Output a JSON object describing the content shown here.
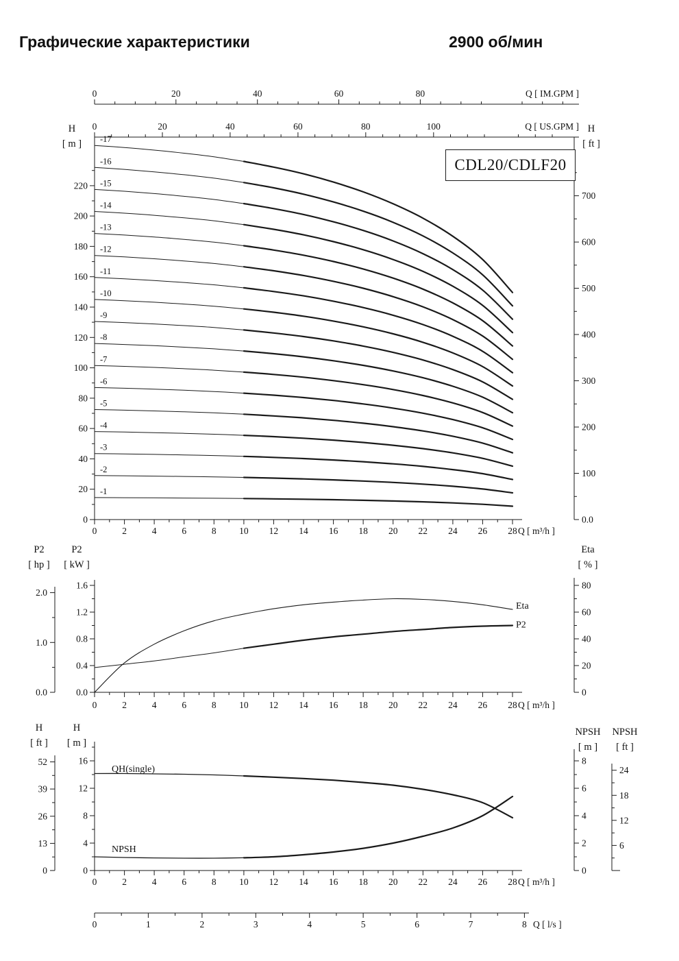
{
  "header": {
    "title": "Графические характеристики",
    "rpm": "2900 об/мин"
  },
  "model": "CDL20/CDLF20",
  "style": {
    "ink": "#1a1a1a"
  },
  "chart_data": [
    {
      "id": "head_curves",
      "type": "line",
      "title": "CDL20/CDLF20",
      "x_label": "Q [ m³/h ]",
      "x_range": [
        0,
        28
      ],
      "x_ticks": [
        0,
        2,
        4,
        6,
        8,
        10,
        12,
        14,
        16,
        18,
        20,
        22,
        24,
        26,
        28
      ],
      "x_top_im": {
        "label": "Q [ IM.GPM ]",
        "ticks": [
          0,
          20,
          40,
          60,
          80
        ],
        "m3h_per_unit": 0.272766
      },
      "x_top_us": {
        "label": "Q [ US.GPM ]",
        "ticks": [
          0,
          20,
          40,
          60,
          80,
          100
        ],
        "m3h_per_unit": 0.227125
      },
      "y_left": {
        "header1": "H",
        "header2": "[ m ]",
        "ticks": [
          0,
          20,
          40,
          60,
          80,
          100,
          120,
          140,
          160,
          180,
          200,
          220
        ],
        "range": [
          0,
          252
        ]
      },
      "y_right": {
        "header1": "H",
        "header2": "[ ft ]",
        "ticks": [
          "0.0",
          "100",
          "200",
          "300",
          "400",
          "500",
          "600",
          "700"
        ],
        "m_per_unit": 0.3048
      },
      "q": [
        0,
        2,
        4,
        6,
        8,
        10,
        12,
        14,
        16,
        18,
        20,
        22,
        24,
        26,
        28
      ],
      "single_stage_head_m": [
        14.5,
        14.42,
        14.32,
        14.2,
        14.06,
        13.88,
        13.66,
        13.4,
        13.08,
        12.7,
        12.24,
        11.68,
        10.98,
        10.08,
        8.8
      ],
      "stages": [
        1,
        2,
        3,
        4,
        5,
        6,
        7,
        8,
        9,
        10,
        11,
        12,
        13,
        14,
        15,
        16,
        17
      ],
      "stage_labels": [
        "-1",
        "-2",
        "-3",
        "-4",
        "-5",
        "-6",
        "-7",
        "-8",
        "-9",
        "-10",
        "-11",
        "-12",
        "-13",
        "-14",
        "-15",
        "-16",
        "-17"
      ],
      "recommended_range_start_m3h": 10
    },
    {
      "id": "power_efficiency",
      "type": "line",
      "x_label": "Q [ m³/h ]",
      "x_range": [
        0,
        28
      ],
      "x_ticks": [
        0,
        2,
        4,
        6,
        8,
        10,
        12,
        14,
        16,
        18,
        20,
        22,
        24,
        26,
        28
      ],
      "q": [
        0,
        2,
        4,
        6,
        8,
        10,
        12,
        14,
        16,
        18,
        20,
        22,
        24,
        26,
        28
      ],
      "series": [
        {
          "name": "P2",
          "unit": "kW",
          "values": [
            0.37,
            0.42,
            0.47,
            0.53,
            0.59,
            0.66,
            0.72,
            0.78,
            0.83,
            0.87,
            0.91,
            0.94,
            0.97,
            0.99,
            1.0
          ]
        },
        {
          "name": "Eta",
          "unit": "%",
          "values": [
            0,
            22,
            36,
            46,
            53.5,
            58.5,
            62.5,
            65.5,
            67.5,
            69,
            70,
            69.5,
            68,
            65.5,
            62
          ]
        }
      ],
      "y_left_hp": {
        "header1": "P2",
        "header2": "[ hp ]",
        "ticks": [
          "0.0",
          "1.0",
          "2.0"
        ],
        "kw_per_hp": 0.7457
      },
      "y_left_kw": {
        "header1": "P2",
        "header2": "[ kW ]",
        "ticks": [
          "0.0",
          "0.4",
          "0.8",
          "1.2",
          "1.6"
        ],
        "range": [
          0,
          2.0
        ]
      },
      "y_right_eta": {
        "header1": "Eta",
        "header2": "[ % ]",
        "ticks": [
          0,
          20,
          40,
          60,
          80
        ],
        "range": [
          0,
          100
        ]
      }
    },
    {
      "id": "single_stage_qh_npsh",
      "type": "line",
      "x_label": "Q [ m³/h ]",
      "x_range": [
        0,
        28
      ],
      "x_ticks": [
        0,
        2,
        4,
        6,
        8,
        10,
        12,
        14,
        16,
        18,
        20,
        22,
        24,
        26,
        28
      ],
      "q": [
        0,
        2,
        4,
        6,
        8,
        10,
        12,
        14,
        16,
        18,
        20,
        22,
        24,
        26,
        28
      ],
      "series": [
        {
          "name": "QH(single)",
          "unit": "m",
          "values": [
            14.15,
            14.15,
            14.1,
            14.05,
            13.95,
            13.8,
            13.62,
            13.42,
            13.18,
            12.85,
            12.45,
            11.85,
            11.05,
            9.9,
            7.7
          ]
        },
        {
          "name": "NPSH",
          "unit": "m",
          "values": [
            1.0,
            0.95,
            0.92,
            0.9,
            0.9,
            0.93,
            1.0,
            1.15,
            1.35,
            1.62,
            2.0,
            2.5,
            3.1,
            4.0,
            5.4
          ]
        }
      ],
      "y_left_ft": {
        "header1": "H",
        "header2": "[ ft ]",
        "ticks": [
          0,
          13,
          26,
          39,
          52
        ],
        "m_per_unit": 0.3048
      },
      "y_left_m": {
        "header1": "H",
        "header2": "[ m ]",
        "ticks": [
          0,
          4,
          8,
          12,
          16
        ],
        "range": [
          0,
          19.5
        ]
      },
      "y_right_npsh_m": {
        "header1": "NPSH",
        "header2": "[ m ]",
        "ticks": [
          0,
          2,
          4,
          6,
          8
        ],
        "range": [
          0,
          9.75
        ]
      },
      "y_right_npsh_ft": {
        "header1": "NPSH",
        "header2": "[ ft ]",
        "ticks": [
          6,
          12,
          18,
          24
        ],
        "m_per_unit": 0.3048
      },
      "x_ls": {
        "label": "Q [ l/s ]",
        "ticks": [
          0,
          1,
          2,
          3,
          4,
          5,
          6,
          7,
          8
        ],
        "m3h_per_unit": 3.6
      }
    }
  ]
}
